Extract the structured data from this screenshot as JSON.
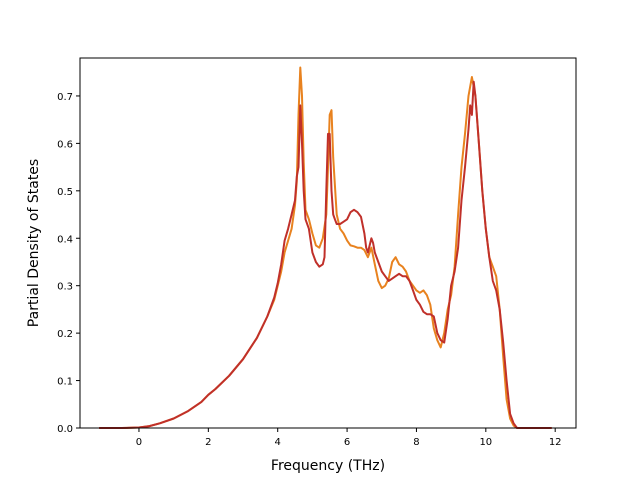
{
  "chart_data": {
    "type": "line",
    "title": "",
    "xlabel": "Frequency (THz)",
    "ylabel": "Partial Density of States",
    "xlim": [
      -1.7,
      12.6
    ],
    "ylim": [
      0,
      0.78
    ],
    "xticks": [
      0,
      2,
      4,
      6,
      8,
      10,
      12
    ],
    "xtick_labels": [
      "0",
      "2",
      "4",
      "6",
      "8",
      "10",
      "12"
    ],
    "yticks": [
      0.0,
      0.1,
      0.2,
      0.3,
      0.4,
      0.5,
      0.6,
      0.7
    ],
    "ytick_labels": [
      "0.0",
      "0.1",
      "0.2",
      "0.3",
      "0.4",
      "0.5",
      "0.6",
      "0.7"
    ],
    "grid": false,
    "legend": false,
    "series": [
      {
        "color": "#e8821f",
        "x": [
          -1.15,
          -0.5,
          0.0,
          0.3,
          0.6,
          1.0,
          1.4,
          1.8,
          2.0,
          2.2,
          2.6,
          3.0,
          3.4,
          3.7,
          3.9,
          4.0,
          4.1,
          4.2,
          4.4,
          4.5,
          4.55,
          4.6,
          4.65,
          4.7,
          4.75,
          4.8,
          4.9,
          5.0,
          5.1,
          5.2,
          5.3,
          5.4,
          5.45,
          5.5,
          5.55,
          5.6,
          5.7,
          5.8,
          5.9,
          6.0,
          6.1,
          6.2,
          6.3,
          6.4,
          6.5,
          6.6,
          6.7,
          6.8,
          6.9,
          7.0,
          7.1,
          7.2,
          7.3,
          7.4,
          7.5,
          7.6,
          7.7,
          7.8,
          7.9,
          8.0,
          8.1,
          8.2,
          8.3,
          8.4,
          8.5,
          8.6,
          8.7,
          8.8,
          8.9,
          9.0,
          9.1,
          9.2,
          9.3,
          9.4,
          9.5,
          9.6,
          9.7,
          9.8,
          9.9,
          10.0,
          10.1,
          10.2,
          10.3,
          10.4,
          10.5,
          10.6,
          10.7,
          10.8,
          10.9,
          11.0,
          11.5,
          11.9
        ],
        "y": [
          0.0,
          0.0,
          0.001,
          0.004,
          0.01,
          0.02,
          0.035,
          0.055,
          0.07,
          0.082,
          0.11,
          0.145,
          0.19,
          0.235,
          0.27,
          0.3,
          0.33,
          0.37,
          0.42,
          0.47,
          0.52,
          0.66,
          0.76,
          0.7,
          0.56,
          0.46,
          0.44,
          0.41,
          0.385,
          0.38,
          0.4,
          0.45,
          0.55,
          0.66,
          0.67,
          0.57,
          0.45,
          0.42,
          0.41,
          0.395,
          0.385,
          0.383,
          0.38,
          0.38,
          0.375,
          0.36,
          0.38,
          0.345,
          0.31,
          0.295,
          0.3,
          0.315,
          0.35,
          0.36,
          0.345,
          0.34,
          0.33,
          0.31,
          0.3,
          0.29,
          0.285,
          0.29,
          0.28,
          0.26,
          0.21,
          0.185,
          0.17,
          0.2,
          0.25,
          0.28,
          0.34,
          0.45,
          0.55,
          0.62,
          0.7,
          0.74,
          0.7,
          0.6,
          0.5,
          0.42,
          0.36,
          0.34,
          0.32,
          0.25,
          0.15,
          0.06,
          0.02,
          0.005,
          0.0,
          0.0,
          0.0,
          0.0
        ]
      },
      {
        "color": "#c0302a",
        "x": [
          -1.15,
          -0.5,
          0.0,
          0.3,
          0.6,
          1.0,
          1.4,
          1.8,
          2.0,
          2.2,
          2.6,
          3.0,
          3.4,
          3.7,
          3.9,
          4.0,
          4.1,
          4.2,
          4.3,
          4.4,
          4.5,
          4.55,
          4.6,
          4.65,
          4.7,
          4.75,
          4.8,
          4.9,
          5.0,
          5.1,
          5.2,
          5.3,
          5.35,
          5.4,
          5.45,
          5.5,
          5.55,
          5.6,
          5.65,
          5.7,
          5.8,
          5.9,
          6.0,
          6.1,
          6.2,
          6.3,
          6.4,
          6.5,
          6.55,
          6.6,
          6.7,
          6.75,
          6.8,
          6.9,
          7.0,
          7.1,
          7.2,
          7.3,
          7.4,
          7.5,
          7.6,
          7.7,
          7.8,
          7.9,
          8.0,
          8.1,
          8.2,
          8.3,
          8.4,
          8.5,
          8.6,
          8.7,
          8.8,
          8.9,
          9.0,
          9.1,
          9.2,
          9.3,
          9.4,
          9.5,
          9.55,
          9.6,
          9.65,
          9.7,
          9.8,
          9.9,
          10.0,
          10.1,
          10.2,
          10.3,
          10.4,
          10.5,
          10.6,
          10.7,
          10.8,
          10.9,
          11.0,
          11.5,
          11.9
        ],
        "y": [
          0.0,
          0.0,
          0.001,
          0.004,
          0.01,
          0.02,
          0.035,
          0.055,
          0.07,
          0.082,
          0.11,
          0.145,
          0.19,
          0.235,
          0.275,
          0.305,
          0.345,
          0.395,
          0.42,
          0.45,
          0.48,
          0.53,
          0.55,
          0.68,
          0.6,
          0.5,
          0.44,
          0.42,
          0.37,
          0.35,
          0.34,
          0.345,
          0.36,
          0.5,
          0.62,
          0.62,
          0.5,
          0.45,
          0.44,
          0.43,
          0.43,
          0.435,
          0.44,
          0.455,
          0.46,
          0.455,
          0.445,
          0.41,
          0.38,
          0.37,
          0.4,
          0.39,
          0.37,
          0.35,
          0.33,
          0.32,
          0.31,
          0.315,
          0.32,
          0.325,
          0.32,
          0.32,
          0.31,
          0.29,
          0.27,
          0.26,
          0.245,
          0.24,
          0.24,
          0.235,
          0.2,
          0.185,
          0.18,
          0.23,
          0.3,
          0.33,
          0.38,
          0.48,
          0.55,
          0.63,
          0.68,
          0.66,
          0.73,
          0.7,
          0.6,
          0.5,
          0.42,
          0.36,
          0.31,
          0.29,
          0.25,
          0.18,
          0.1,
          0.03,
          0.01,
          0.0,
          0.0,
          0.0,
          0.0
        ]
      }
    ]
  }
}
